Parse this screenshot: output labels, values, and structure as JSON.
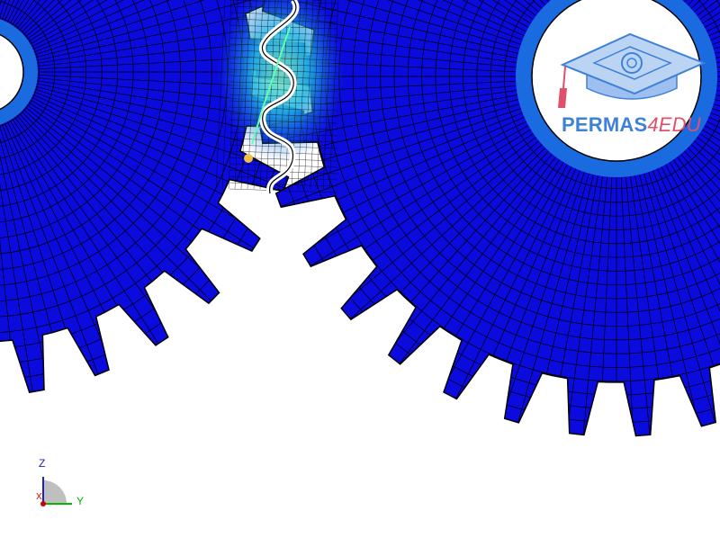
{
  "viewport": {
    "content": "fe-mesh-gear-contact-plot"
  },
  "logo": {
    "main_text": "PERMAS",
    "accent_text": "4EDU",
    "icon": "graduation-cap-icon",
    "colors": {
      "main": "#3d82d8",
      "accent": "#e0506a",
      "cap": "#bcd4f3"
    }
  },
  "triad": {
    "z_label": "Z",
    "y_label": "Y",
    "x_label": "X",
    "colors": {
      "z": "#2020c0",
      "y": "#00b800",
      "x": "#d00000"
    }
  },
  "colors": {
    "mesh_fill": "#0b0bdd",
    "mesh_line": "#000000",
    "hole_ring": "#1a6be0",
    "hotspot_cyan": "#24b8e8",
    "hotspot_green": "#30e0a0",
    "background": "#ffffff"
  }
}
